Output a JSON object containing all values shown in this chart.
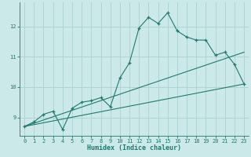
{
  "xlabel": "Humidex (Indice chaleur)",
  "xlim": [
    -0.5,
    23.5
  ],
  "ylim": [
    8.4,
    12.8
  ],
  "yticks": [
    9,
    10,
    11,
    12
  ],
  "xticks": [
    0,
    1,
    2,
    3,
    4,
    5,
    6,
    7,
    8,
    9,
    10,
    11,
    12,
    13,
    14,
    15,
    16,
    17,
    18,
    19,
    20,
    21,
    22,
    23
  ],
  "background_color": "#cce9e9",
  "grid_color": "#aed4d4",
  "line_color": "#1e7a6e",
  "series1_x": [
    0,
    1,
    2,
    3,
    4,
    5,
    6,
    7,
    8,
    9,
    10,
    11,
    12,
    13,
    14,
    15,
    16,
    17,
    18,
    19,
    20,
    21,
    22,
    23
  ],
  "series1_y": [
    8.7,
    8.85,
    9.1,
    9.2,
    8.6,
    9.3,
    9.5,
    9.55,
    9.65,
    9.35,
    10.3,
    10.8,
    11.95,
    12.3,
    12.1,
    12.45,
    11.85,
    11.65,
    11.55,
    11.55,
    11.05,
    11.15,
    10.75,
    10.1
  ],
  "series2_x": [
    0,
    23
  ],
  "series2_y": [
    8.7,
    11.15
  ],
  "series3_x": [
    0,
    23
  ],
  "series3_y": [
    8.7,
    10.1
  ]
}
